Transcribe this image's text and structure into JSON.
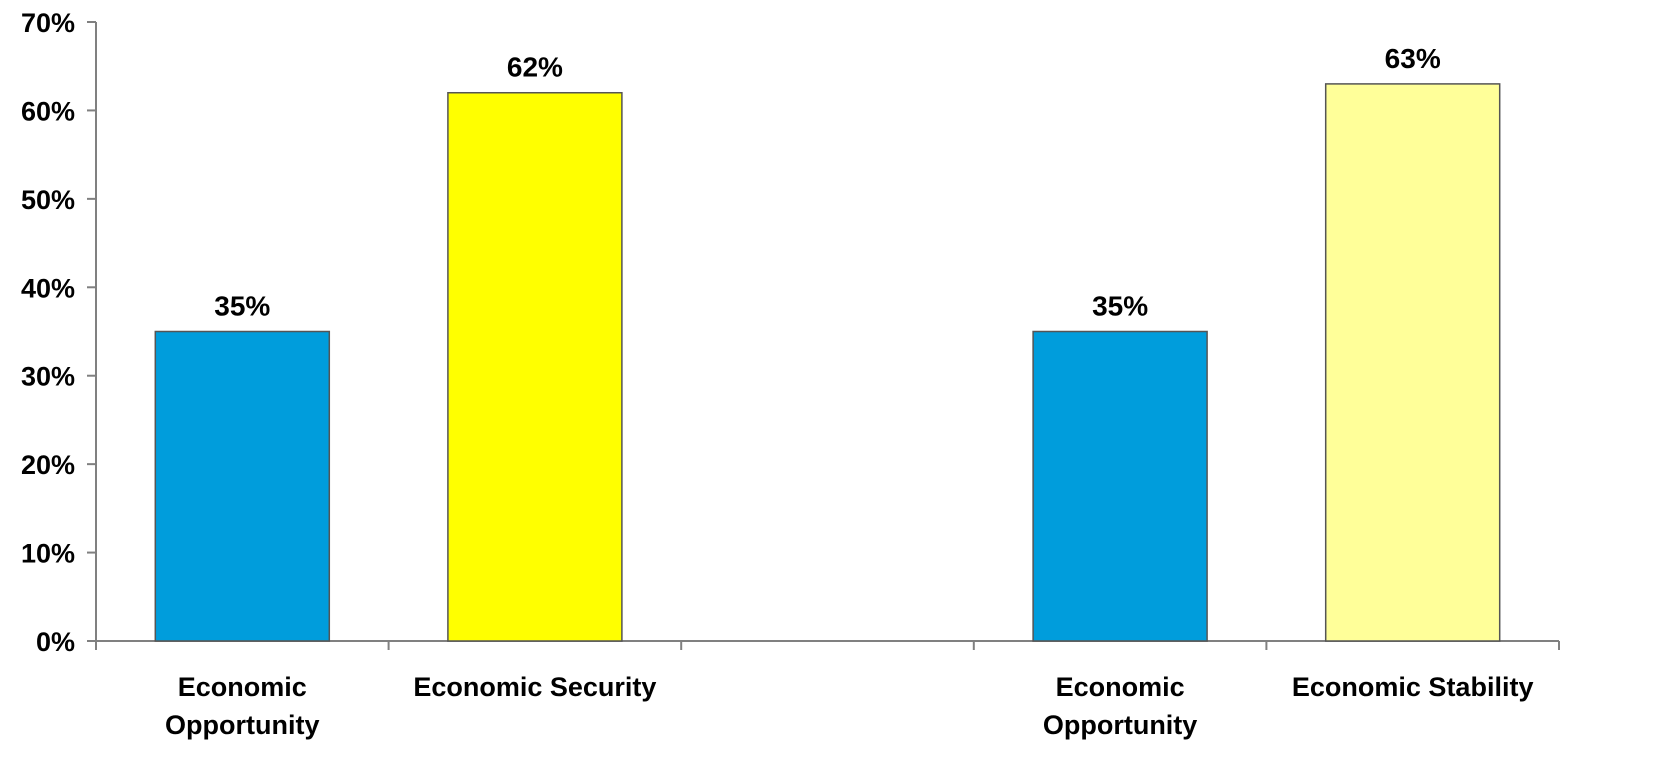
{
  "chart_data": {
    "type": "bar",
    "title": "",
    "xlabel": "",
    "ylabel": "",
    "ylim": [
      0,
      0.7
    ],
    "y_ticks": [
      "0%",
      "10%",
      "20%",
      "30%",
      "40%",
      "50%",
      "60%",
      "70%"
    ],
    "grid": false,
    "categories": [
      {
        "label_lines": [
          "Economic",
          "Opportunity"
        ],
        "value": 0.35,
        "label": "35%",
        "color": "#009DDC"
      },
      {
        "label_lines": [
          "Economic Security"
        ],
        "value": 0.62,
        "label": "62%",
        "color": "#FFFF00"
      },
      {
        "label_lines": [],
        "value": null,
        "label": "",
        "color": ""
      },
      {
        "label_lines": [
          "Economic",
          "Opportunity"
        ],
        "value": 0.35,
        "label": "35%",
        "color": "#009DDC"
      },
      {
        "label_lines": [
          "Economic Stability"
        ],
        "value": 0.63,
        "label": "63%",
        "color": "#FFFF99"
      }
    ]
  }
}
